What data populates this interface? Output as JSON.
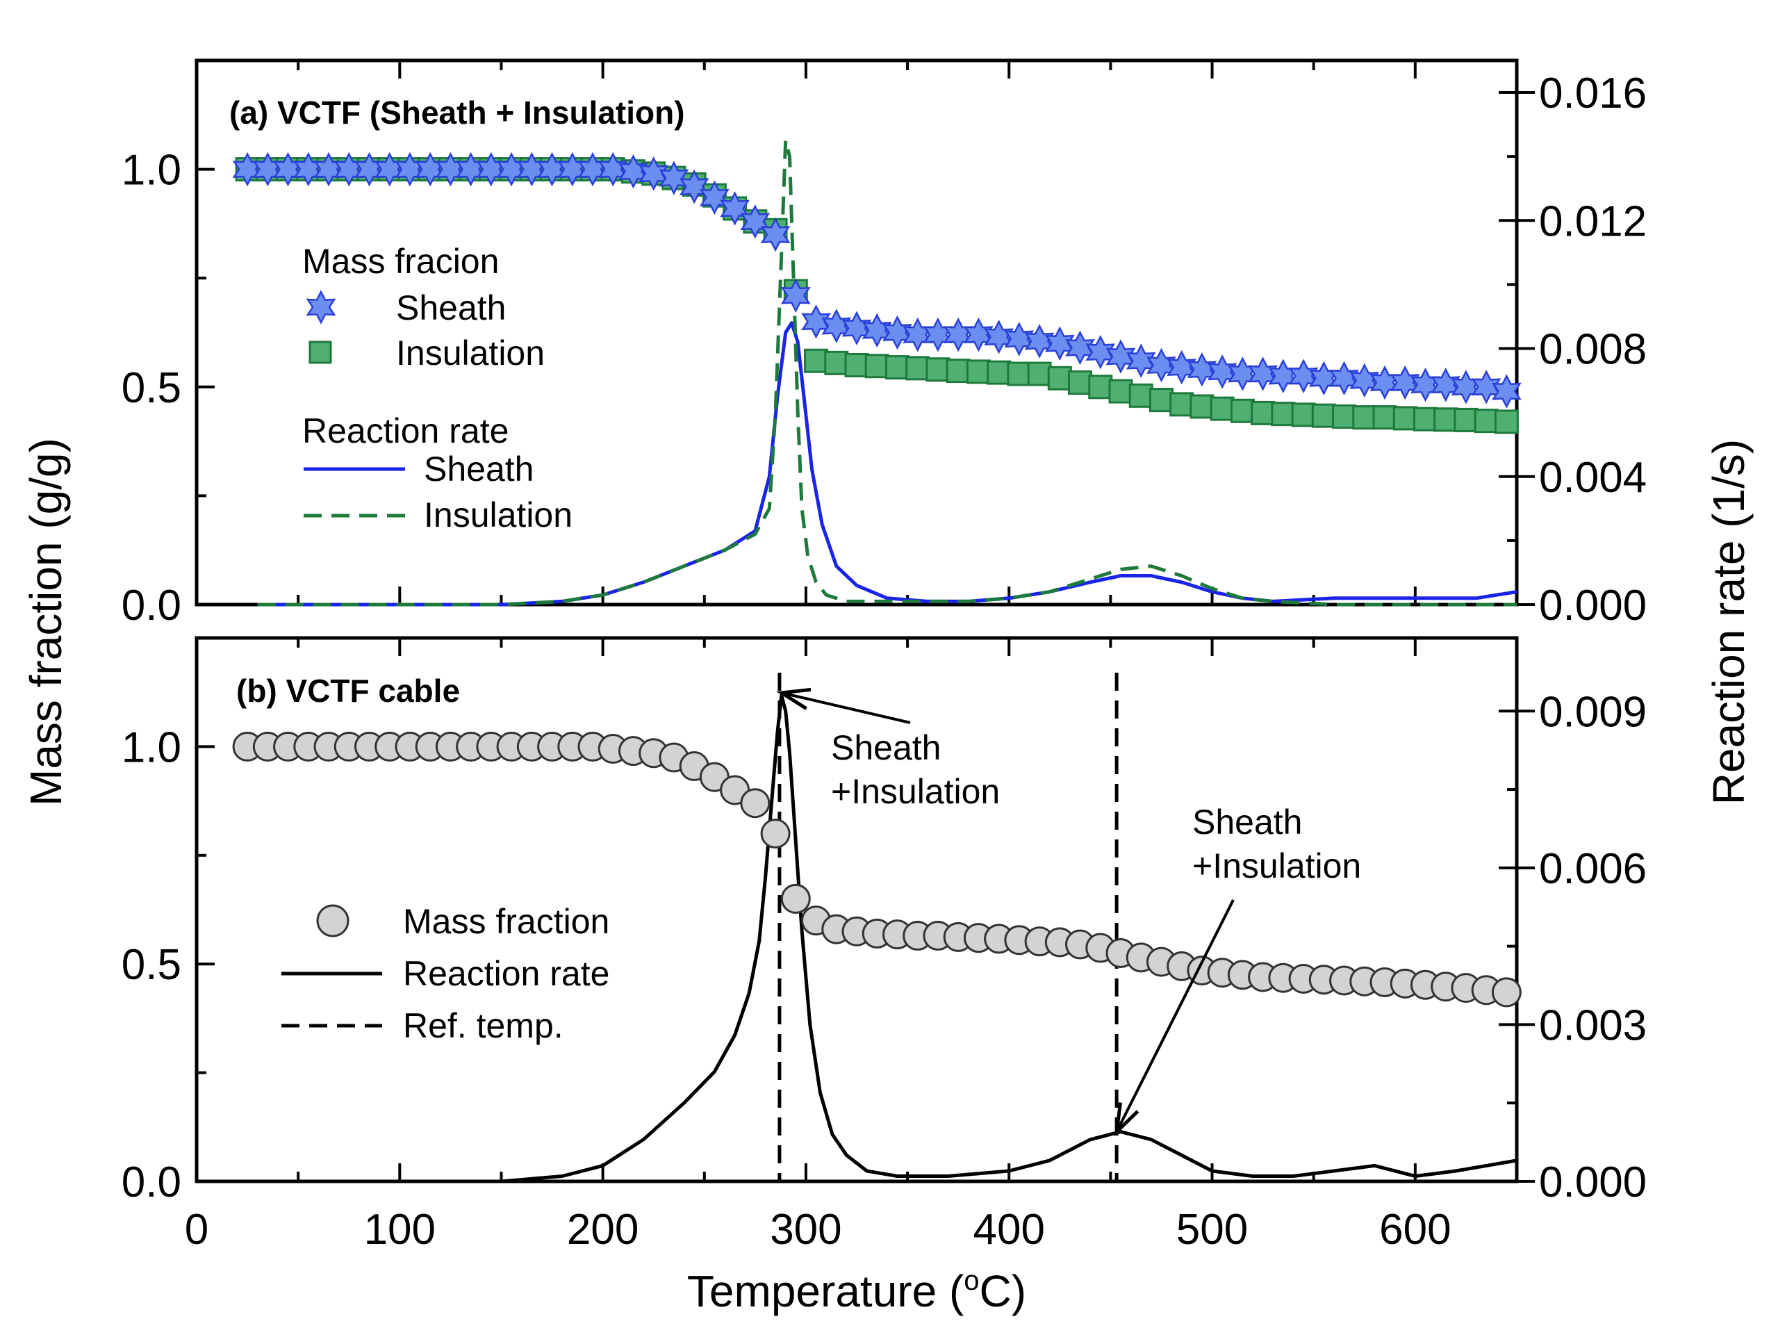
{
  "figure": {
    "xlabel": "Temperature (°C)",
    "xlabel_prefix": "Temperature (",
    "xlabel_sup": "o",
    "xlabel_suffix": "C)",
    "ylabel_left": "Mass fraction (g/g)",
    "ylabel_right": "Reaction rate (1/s)"
  },
  "chart_data": [
    {
      "type": "line",
      "title": "(a) VCTF (Sheath + Insulation)",
      "xlabel": "Temperature (°C)",
      "ylabel": "Mass fraction (g/g)",
      "y2label": "Reaction rate (1/s)",
      "xlim": [
        0,
        650
      ],
      "ylim": [
        0,
        1.25
      ],
      "y2lim": [
        0,
        0.017
      ],
      "xticks": [
        0,
        100,
        200,
        300,
        400,
        500,
        600
      ],
      "yticks": [
        0.0,
        0.5,
        1.0
      ],
      "ytick_labels": [
        "0.0",
        "0.5",
        "1.0"
      ],
      "y2ticks": [
        0.0,
        0.004,
        0.008,
        0.012,
        0.016
      ],
      "y2tick_labels": [
        "0.000",
        "0.004",
        "0.008",
        "0.012",
        "0.016"
      ],
      "legend": {
        "mass_header": "Mass fracion",
        "rate_header": "Reaction rate",
        "sheath": "Sheath",
        "insulation": "Insulation"
      },
      "series": [
        {
          "name": "Sheath (mass fraction)",
          "axis": "left",
          "marker": "star",
          "color": "#6c8ef0",
          "edge": "#2a3fd8",
          "x": [
            25,
            35,
            45,
            55,
            65,
            75,
            85,
            95,
            105,
            115,
            125,
            135,
            145,
            155,
            165,
            175,
            185,
            195,
            205,
            215,
            225,
            235,
            245,
            255,
            265,
            275,
            285,
            295,
            305,
            315,
            325,
            335,
            345,
            355,
            365,
            375,
            385,
            395,
            405,
            415,
            425,
            435,
            445,
            455,
            465,
            475,
            485,
            495,
            505,
            515,
            525,
            535,
            545,
            555,
            565,
            575,
            585,
            595,
            605,
            615,
            625,
            635,
            645
          ],
          "values": [
            1.0,
            1.0,
            1.0,
            1.0,
            1.0,
            1.0,
            1.0,
            1.0,
            1.0,
            1.0,
            1.0,
            1.0,
            1.0,
            1.0,
            1.0,
            1.0,
            1.0,
            1.0,
            1.0,
            0.995,
            0.99,
            0.98,
            0.96,
            0.935,
            0.91,
            0.88,
            0.85,
            0.71,
            0.65,
            0.64,
            0.635,
            0.63,
            0.625,
            0.62,
            0.62,
            0.62,
            0.62,
            0.615,
            0.61,
            0.605,
            0.6,
            0.59,
            0.58,
            0.57,
            0.56,
            0.55,
            0.545,
            0.54,
            0.535,
            0.53,
            0.53,
            0.525,
            0.525,
            0.52,
            0.52,
            0.515,
            0.51,
            0.51,
            0.505,
            0.505,
            0.5,
            0.5,
            0.49
          ]
        },
        {
          "name": "Insulation (mass fraction)",
          "axis": "left",
          "marker": "square",
          "color": "#4fb072",
          "edge": "#1e7a3c",
          "x": [
            25,
            35,
            45,
            55,
            65,
            75,
            85,
            95,
            105,
            115,
            125,
            135,
            145,
            155,
            165,
            175,
            185,
            195,
            205,
            215,
            225,
            235,
            245,
            255,
            265,
            275,
            285,
            295,
            305,
            315,
            325,
            335,
            345,
            355,
            365,
            375,
            385,
            395,
            405,
            415,
            425,
            435,
            445,
            455,
            465,
            475,
            485,
            495,
            505,
            515,
            525,
            535,
            545,
            555,
            565,
            575,
            585,
            595,
            605,
            615,
            625,
            635,
            645
          ],
          "values": [
            1.0,
            1.0,
            1.0,
            1.0,
            1.0,
            1.0,
            1.0,
            1.0,
            1.0,
            1.0,
            1.0,
            1.0,
            1.0,
            1.0,
            1.0,
            1.0,
            1.0,
            1.0,
            1.0,
            0.995,
            0.99,
            0.98,
            0.965,
            0.94,
            0.91,
            0.88,
            0.86,
            0.72,
            0.56,
            0.555,
            0.55,
            0.548,
            0.545,
            0.543,
            0.54,
            0.537,
            0.535,
            0.533,
            0.53,
            0.53,
            0.52,
            0.51,
            0.5,
            0.49,
            0.48,
            0.47,
            0.46,
            0.455,
            0.45,
            0.445,
            0.44,
            0.438,
            0.436,
            0.434,
            0.432,
            0.43,
            0.43,
            0.428,
            0.426,
            0.425,
            0.424,
            0.422,
            0.42
          ]
        },
        {
          "name": "Sheath (reaction rate)",
          "axis": "right",
          "style": "solid",
          "color": "#1a24e8",
          "x": [
            30,
            100,
            150,
            180,
            200,
            220,
            240,
            260,
            275,
            282,
            286,
            290,
            293,
            296,
            299,
            303,
            308,
            315,
            325,
            340,
            360,
            380,
            400,
            420,
            440,
            455,
            470,
            485,
            500,
            515,
            530,
            560,
            600,
            630,
            650
          ],
          "values": [
            0.0,
            0.0,
            0.0,
            0.0001,
            0.0003,
            0.0007,
            0.0012,
            0.0017,
            0.0023,
            0.004,
            0.0065,
            0.0085,
            0.0088,
            0.0082,
            0.0065,
            0.0042,
            0.0025,
            0.0012,
            0.0006,
            0.0002,
            0.0001,
            0.0001,
            0.0002,
            0.0004,
            0.0007,
            0.0009,
            0.0009,
            0.0007,
            0.0004,
            0.0002,
            0.0001,
            0.0002,
            0.0002,
            0.0002,
            0.0004
          ]
        },
        {
          "name": "Insulation (reaction rate)",
          "axis": "right",
          "style": "dashed",
          "color": "#1e7a3c",
          "x": [
            30,
            100,
            150,
            180,
            200,
            220,
            240,
            260,
            275,
            282,
            285,
            288,
            290,
            292,
            294,
            296,
            298,
            301,
            305,
            310,
            320,
            340,
            360,
            380,
            400,
            420,
            440,
            455,
            470,
            485,
            500,
            515,
            530,
            560,
            600,
            650
          ],
          "values": [
            0.0,
            0.0,
            0.0,
            0.0001,
            0.0003,
            0.0007,
            0.0012,
            0.0017,
            0.0022,
            0.003,
            0.006,
            0.011,
            0.0145,
            0.014,
            0.01,
            0.006,
            0.003,
            0.0015,
            0.0007,
            0.0003,
            0.0001,
            0.0001,
            0.0001,
            0.0001,
            0.0002,
            0.0004,
            0.0008,
            0.0011,
            0.0012,
            0.0009,
            0.0005,
            0.0002,
            0.0001,
            0.0,
            0.0,
            0.0
          ]
        }
      ]
    },
    {
      "type": "line",
      "title": "(b) VCTF cable",
      "xlabel": "Temperature (°C)",
      "ylabel": "Mass fraction (g/g)",
      "y2label": "Reaction rate (1/s)",
      "xlim": [
        0,
        650
      ],
      "ylim": [
        0,
        1.25
      ],
      "y2lim": [
        0,
        0.0104
      ],
      "xticks": [
        0,
        100,
        200,
        300,
        400,
        500,
        600
      ],
      "xtick_labels": [
        "0",
        "100",
        "200",
        "300",
        "400",
        "500",
        "600"
      ],
      "yticks": [
        0.0,
        0.5,
        1.0
      ],
      "ytick_labels": [
        "0.0",
        "0.5",
        "1.0"
      ],
      "y2ticks": [
        0.0,
        0.003,
        0.006,
        0.009
      ],
      "y2tick_labels": [
        "0.000",
        "0.003",
        "0.006",
        "0.009"
      ],
      "legend": {
        "mass": "Mass fraction",
        "rate": "Reaction rate",
        "ref": "Ref. temp."
      },
      "ref_temps": [
        287,
        453
      ],
      "annotations": [
        {
          "line1": "Sheath",
          "line2": "+Insulation",
          "target_x": 288,
          "target_y2": 0.00935
        },
        {
          "line1": "Sheath",
          "line2": "+Insulation",
          "target_x": 453,
          "target_y2": 0.00095
        }
      ],
      "series": [
        {
          "name": "Mass fraction",
          "axis": "left",
          "marker": "circle",
          "color": "#d3d3d3",
          "edge": "#333333",
          "x": [
            25,
            35,
            45,
            55,
            65,
            75,
            85,
            95,
            105,
            115,
            125,
            135,
            145,
            155,
            165,
            175,
            185,
            195,
            205,
            215,
            225,
            235,
            245,
            255,
            265,
            275,
            285,
            295,
            305,
            315,
            325,
            335,
            345,
            355,
            365,
            375,
            385,
            395,
            405,
            415,
            425,
            435,
            445,
            455,
            465,
            475,
            485,
            495,
            505,
            515,
            525,
            535,
            545,
            555,
            565,
            575,
            585,
            595,
            605,
            615,
            625,
            635,
            645
          ],
          "values": [
            1.0,
            1.0,
            1.0,
            1.0,
            1.0,
            1.0,
            1.0,
            1.0,
            1.0,
            1.0,
            1.0,
            1.0,
            1.0,
            1.0,
            1.0,
            1.0,
            1.0,
            1.0,
            0.995,
            0.99,
            0.985,
            0.975,
            0.955,
            0.93,
            0.9,
            0.87,
            0.8,
            0.65,
            0.6,
            0.58,
            0.575,
            0.57,
            0.568,
            0.565,
            0.565,
            0.562,
            0.56,
            0.558,
            0.555,
            0.552,
            0.55,
            0.545,
            0.537,
            0.525,
            0.515,
            0.505,
            0.495,
            0.485,
            0.48,
            0.475,
            0.47,
            0.468,
            0.466,
            0.464,
            0.462,
            0.46,
            0.458,
            0.455,
            0.452,
            0.448,
            0.445,
            0.44,
            0.435
          ]
        },
        {
          "name": "Reaction rate",
          "axis": "right",
          "style": "solid",
          "color": "#000000",
          "x": [
            25,
            150,
            180,
            200,
            220,
            240,
            255,
            265,
            272,
            277,
            280,
            283,
            286,
            288,
            290,
            292,
            295,
            298,
            302,
            307,
            313,
            320,
            330,
            345,
            370,
            400,
            420,
            440,
            455,
            470,
            485,
            500,
            520,
            540,
            560,
            580,
            600,
            620,
            650
          ],
          "values": [
            0.0,
            0.0,
            0.0001,
            0.0003,
            0.0008,
            0.0015,
            0.0021,
            0.0028,
            0.0036,
            0.0046,
            0.0058,
            0.0072,
            0.0086,
            0.0093,
            0.009,
            0.0082,
            0.0065,
            0.0048,
            0.003,
            0.0017,
            0.0009,
            0.0005,
            0.0002,
            0.0001,
            0.0001,
            0.0002,
            0.0004,
            0.0008,
            0.00095,
            0.0008,
            0.0005,
            0.0002,
            0.0001,
            0.0001,
            0.0002,
            0.0003,
            0.0001,
            0.0002,
            0.0004
          ]
        }
      ]
    }
  ]
}
